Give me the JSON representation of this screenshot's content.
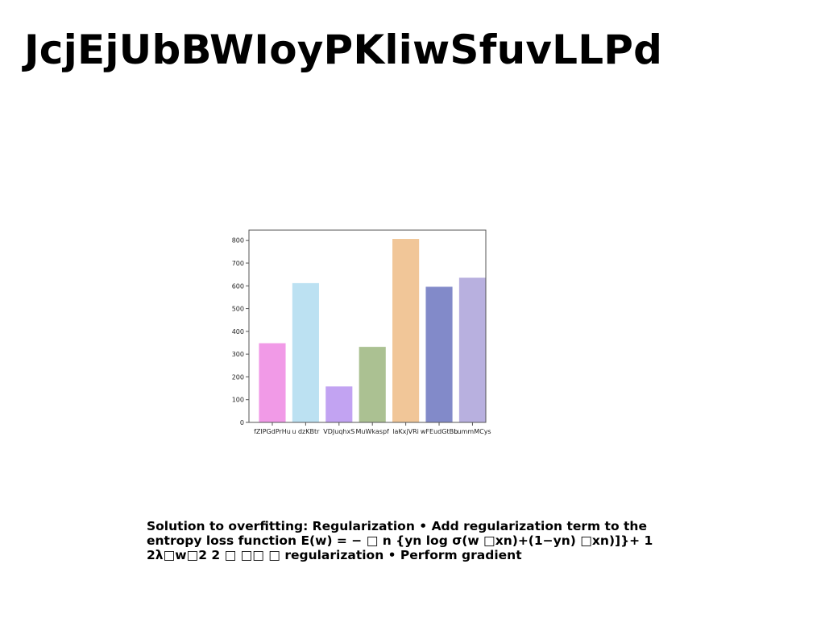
{
  "page": {
    "title": "JcjEjUbBWIoyPKliwSfuvLLPd",
    "caption": "Solution to overfitting: Regularization • Add regularization term to the entropy loss function E(w) = − □ n {yn log σ(w □xn)+(1−yn) □xn)]}+ 1 2λ□w□2 2 □ □□ □ regularization • Perform gradient"
  },
  "chart_data": {
    "type": "bar",
    "title": "",
    "xlabel": "",
    "ylabel": "",
    "categories": [
      "fZIPGdPrHu",
      "u dzKBtr",
      "VDJuqhxS",
      "MuWkaspf",
      "laKxjVRi",
      "wFEudGtBb",
      "LummMCys"
    ],
    "values": [
      348,
      612,
      158,
      332,
      806,
      596,
      636
    ],
    "colors": [
      "#f19ae7",
      "#bce1f2",
      "#c2a3f2",
      "#abc192",
      "#f1c698",
      "#828ac9",
      "#b8b0df"
    ],
    "ylim": [
      0,
      845
    ],
    "yticks": [
      0,
      100,
      200,
      300,
      400,
      500,
      600,
      700,
      800
    ],
    "grid": false
  }
}
